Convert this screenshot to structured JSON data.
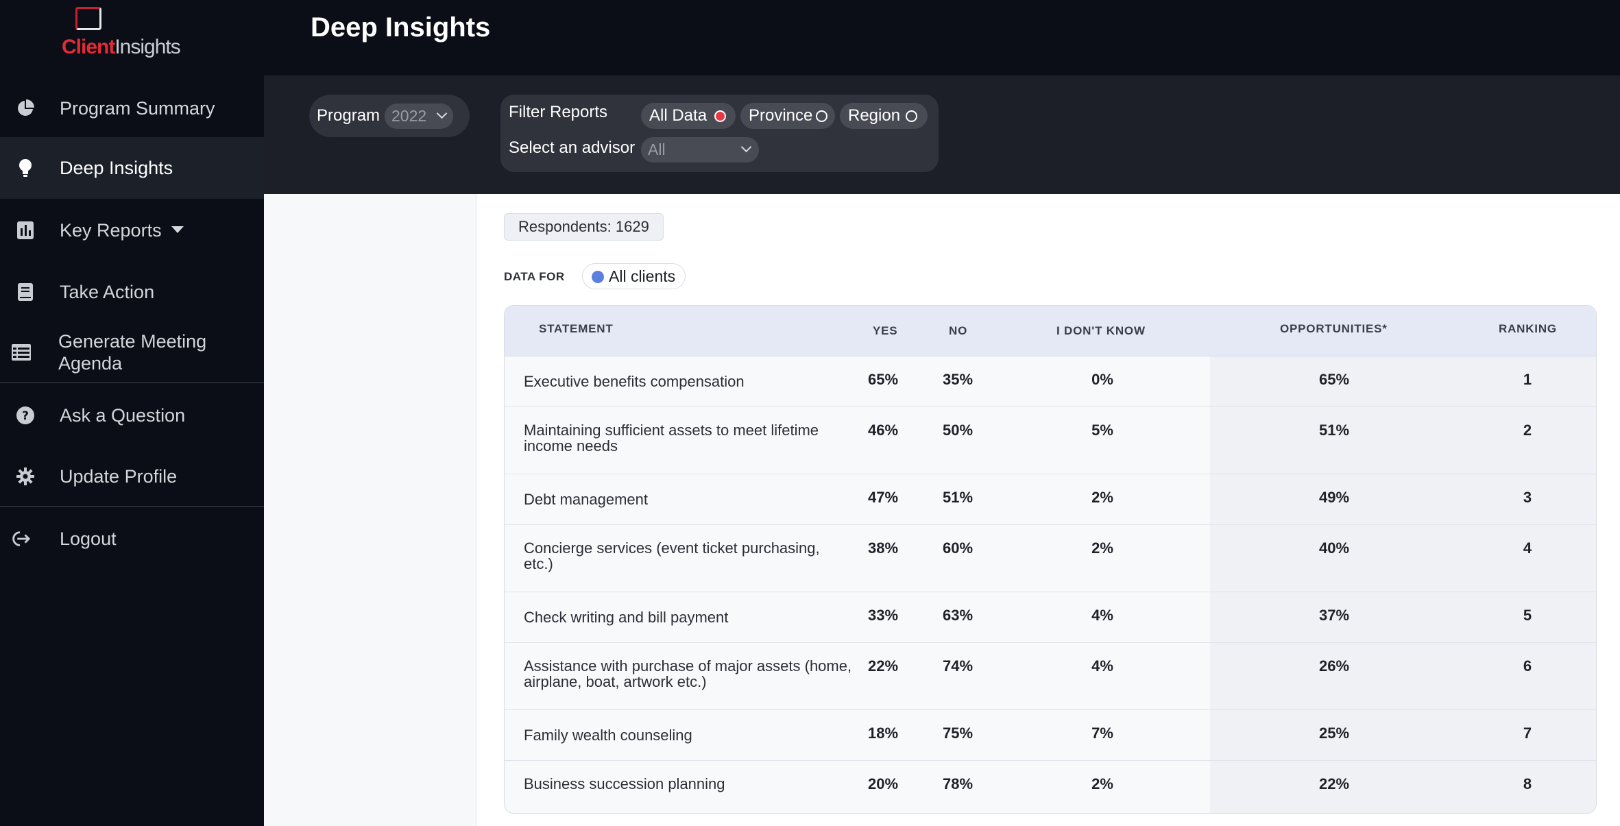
{
  "brand": {
    "logo_client": "Client",
    "logo_insights": "Insights",
    "accent_color": "#e32b36"
  },
  "sidebar": {
    "items": [
      {
        "label": "Program Summary",
        "icon": "pie-chart-icon"
      },
      {
        "label": "Deep Insights",
        "icon": "lightbulb-icon",
        "active": true
      },
      {
        "label": "Key Reports",
        "icon": "bar-chart-icon"
      },
      {
        "label": "Take Action",
        "icon": "book-icon"
      },
      {
        "label": "Generate Meeting Agenda",
        "label_line1": "Generate Meeting",
        "label_line2": "Agenda",
        "icon": "list-icon"
      },
      {
        "label": "Ask a Question",
        "icon": "question-circle-icon"
      },
      {
        "label": "Update Profile",
        "icon": "gear-icon"
      },
      {
        "label": "Logout",
        "icon": "logout-icon"
      }
    ]
  },
  "header": {
    "title": "Deep Insights"
  },
  "filters": {
    "program_label": "Program",
    "program_value": "2022",
    "filter_reports_label": "Filter Reports",
    "options": [
      {
        "label": "All Data",
        "selected": true
      },
      {
        "label": "Province",
        "selected": false
      },
      {
        "label": "Region",
        "selected": false
      }
    ],
    "advisor_label": "Select an advisor",
    "advisor_value": "All"
  },
  "main": {
    "respondents": "Respondents: 1629",
    "data_for_label": "DATA FOR",
    "data_for_chip": "All clients",
    "table": {
      "headers": {
        "statement": "STATEMENT",
        "yes": "YES",
        "no": "NO",
        "dont_know": "I DON'T KNOW",
        "opportunities": "OPPORTUNITIES*",
        "ranking": "RANKING"
      },
      "rows": [
        {
          "statement": "Executive benefits compensation",
          "yes": "65%",
          "no": "35%",
          "dont_know": "0%",
          "opportunities": "65%",
          "ranking": "1"
        },
        {
          "statement": "Maintaining sufficient assets to meet lifetime income needs",
          "yes": "46%",
          "no": "50%",
          "dont_know": "5%",
          "opportunities": "51%",
          "ranking": "2"
        },
        {
          "statement": "Debt management",
          "yes": "47%",
          "no": "51%",
          "dont_know": "2%",
          "opportunities": "49%",
          "ranking": "3"
        },
        {
          "statement": "Concierge services (event ticket purchasing, etc.)",
          "yes": "38%",
          "no": "60%",
          "dont_know": "2%",
          "opportunities": "40%",
          "ranking": "4"
        },
        {
          "statement": "Check writing and bill payment",
          "yes": "33%",
          "no": "63%",
          "dont_know": "4%",
          "opportunities": "37%",
          "ranking": "5"
        },
        {
          "statement": "Assistance with purchase of major assets (home, airplane, boat, artwork etc.)",
          "yes": "22%",
          "no": "74%",
          "dont_know": "4%",
          "opportunities": "26%",
          "ranking": "6"
        },
        {
          "statement": "Family wealth counseling",
          "yes": "18%",
          "no": "75%",
          "dont_know": "7%",
          "opportunities": "25%",
          "ranking": "7"
        },
        {
          "statement": "Business succession planning",
          "yes": "20%",
          "no": "78%",
          "dont_know": "2%",
          "opportunities": "22%",
          "ranking": "8"
        }
      ]
    }
  }
}
